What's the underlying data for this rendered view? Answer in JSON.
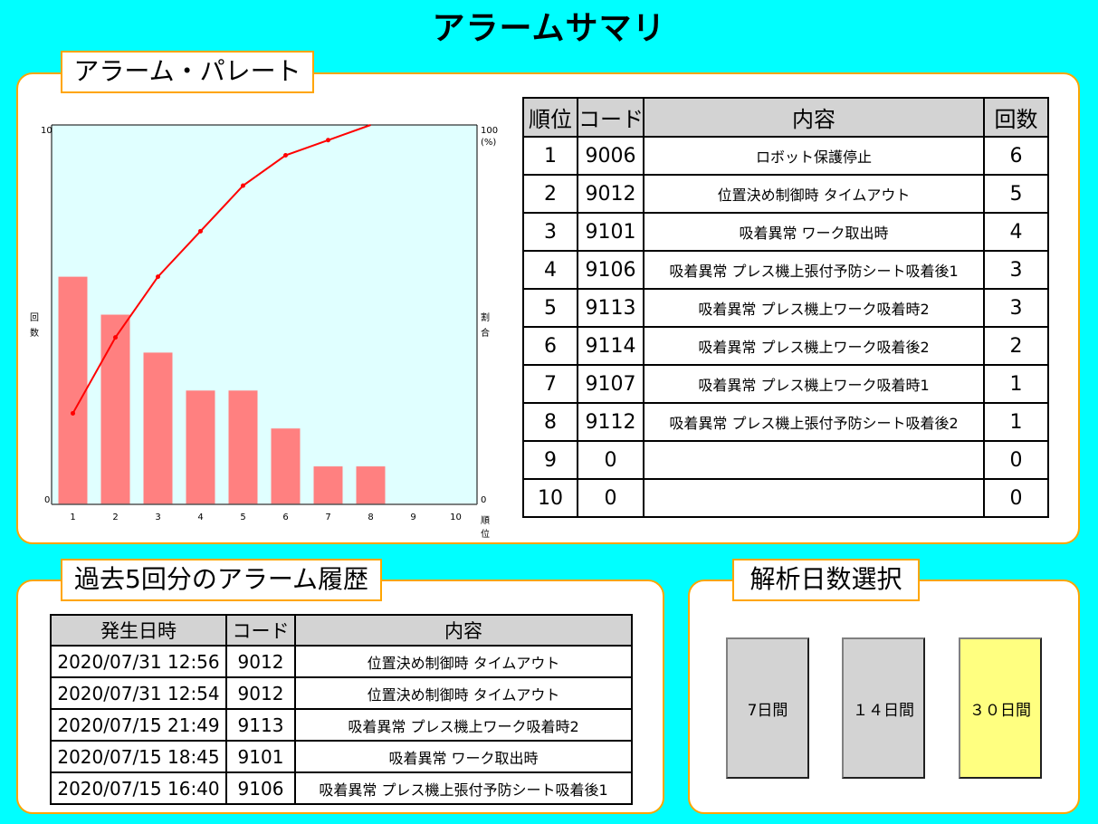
{
  "title": "アラームサマリ",
  "pareto_panel": {
    "label": "アラーム・パレート"
  },
  "chart_data": {
    "type": "bar",
    "categories": [
      "1",
      "2",
      "3",
      "4",
      "5",
      "6",
      "7",
      "8",
      "9",
      "10"
    ],
    "values": [
      6,
      5,
      4,
      3,
      3,
      2,
      1,
      1,
      0,
      0
    ],
    "cumulative_percent": [
      24,
      44,
      60,
      72,
      84,
      92,
      96,
      100,
      null,
      null
    ],
    "xlabel": "順位",
    "ylabel": "回数",
    "y2label": "割合",
    "ylim": [
      0,
      10
    ],
    "y2lim": [
      0,
      100
    ],
    "yticks": [
      "0",
      "10"
    ],
    "y2ticks": [
      "0",
      "100"
    ],
    "y2unit": "(%)",
    "colors": {
      "bar": "#FF8080",
      "line": "#FF0000",
      "plot_bg": "#E0FFFF"
    },
    "grid": false
  },
  "ranking_table": {
    "headers": [
      "順位",
      "コード",
      "内容",
      "回数"
    ],
    "rows": [
      [
        "1",
        "9006",
        "ロボット保護停止",
        "6"
      ],
      [
        "2",
        "9012",
        "位置決め制御時 タイムアウト",
        "5"
      ],
      [
        "3",
        "9101",
        "吸着異常 ワーク取出時",
        "4"
      ],
      [
        "4",
        "9106",
        "吸着異常 プレス機上張付予防シート吸着後1",
        "3"
      ],
      [
        "5",
        "9113",
        "吸着異常 プレス機上ワーク吸着時2",
        "3"
      ],
      [
        "6",
        "9114",
        "吸着異常 プレス機上ワーク吸着後2",
        "2"
      ],
      [
        "7",
        "9107",
        "吸着異常 プレス機上ワーク吸着時1",
        "1"
      ],
      [
        "8",
        "9112",
        "吸着異常 プレス機上張付予防シート吸着後2",
        "1"
      ],
      [
        "9",
        "0",
        "",
        "0"
      ],
      [
        "10",
        "0",
        "",
        "0"
      ]
    ]
  },
  "history_panel": {
    "label": "過去5回分のアラーム履歴",
    "headers": [
      "発生日時",
      "コード",
      "内容"
    ],
    "rows": [
      [
        "2020/07/31 12:56",
        "9012",
        "位置決め制御時 タイムアウト"
      ],
      [
        "2020/07/31 12:54",
        "9012",
        "位置決め制御時 タイムアウト"
      ],
      [
        "2020/07/15 21:49",
        "9113",
        "吸着異常 プレス機上ワーク吸着時2"
      ],
      [
        "2020/07/15 18:45",
        "9101",
        "吸着異常 ワーク取出時"
      ],
      [
        "2020/07/15 16:40",
        "9106",
        "吸着異常 プレス機上張付予防シート吸着後1"
      ]
    ]
  },
  "days_panel": {
    "label": "解析日数選択",
    "buttons": [
      {
        "label": "7日間",
        "selected": false
      },
      {
        "label": "１４日間",
        "selected": false
      },
      {
        "label": "３０日間",
        "selected": true
      }
    ],
    "colors": {
      "normal": "#D3D3D3",
      "selected": "#FFFF80"
    }
  },
  "colors": {
    "background": "#00FFFF",
    "panel_border": "#FFA500",
    "header_bg": "#D3D3D3"
  }
}
